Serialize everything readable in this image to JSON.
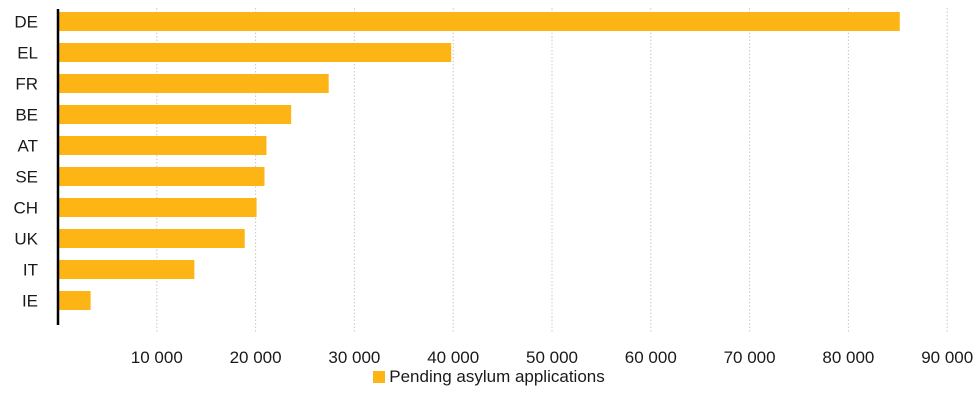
{
  "chart_data": {
    "type": "bar",
    "orientation": "horizontal",
    "title": "",
    "xlabel": "",
    "ylabel": "",
    "categories": [
      "DE",
      "EL",
      "FR",
      "BE",
      "AT",
      "SE",
      "CH",
      "UK",
      "IT",
      "IE"
    ],
    "series": [
      {
        "name": "Pending asylum applications",
        "values": [
          85200,
          39800,
          27400,
          23600,
          21100,
          20900,
          20100,
          18900,
          13800,
          3300
        ],
        "color": "#FDB515"
      }
    ],
    "xlim": [
      0,
      90000
    ],
    "xticks": [
      10000,
      20000,
      30000,
      40000,
      50000,
      60000,
      70000,
      80000,
      90000
    ],
    "xtick_labels": [
      "10 000",
      "20 000",
      "30 000",
      "40 000",
      "50 000",
      "60 000",
      "70 000",
      "80 000",
      "90 000"
    ],
    "grid": "vertical-dotted",
    "legend_position": "bottom-center"
  }
}
